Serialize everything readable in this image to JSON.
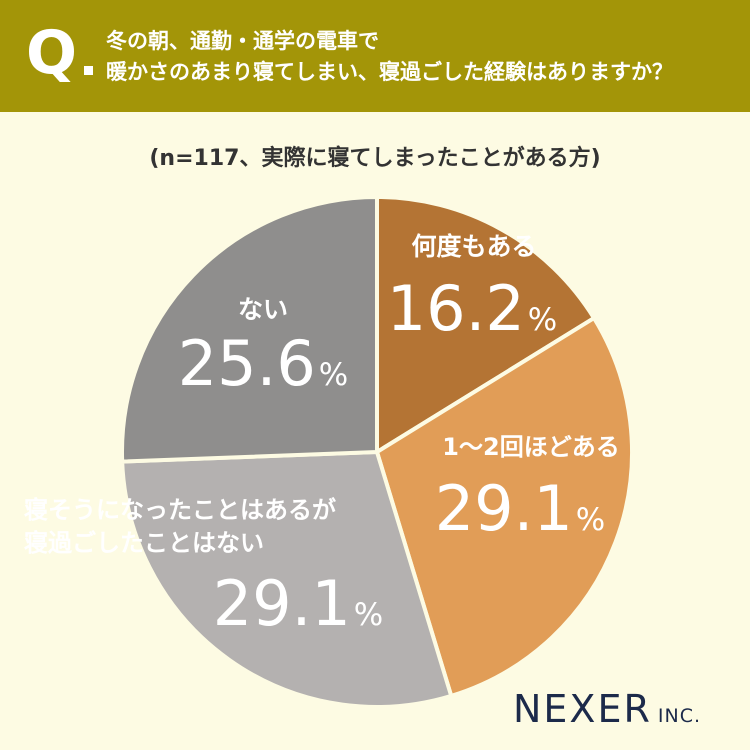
{
  "header": {
    "q_mark": "Q",
    "question_line1": "冬の朝、通勤・通学の電車で",
    "question_line2": "暖かさのあまり寝てしまい、寝過ごした経験はありますか？"
  },
  "subtitle": "(n=117、実際に寝てしまったことがある方)",
  "brand": {
    "name": "NEXER",
    "suffix": "INC."
  },
  "chart_data": {
    "type": "pie",
    "start_angle": "12 o'clock",
    "direction": "clockwise",
    "unit": "%",
    "slices": [
      {
        "label": "何度もある",
        "value": 16.2,
        "color": "#b47434",
        "label_color": "#ffffff"
      },
      {
        "label": "1〜2回ほどある",
        "value": 29.1,
        "color": "#e19d57",
        "label_color": "#ffffff"
      },
      {
        "label": "寝そうになったことはあるが\n寝過ごしたことはない",
        "value": 29.1,
        "color": "#b4b1b0",
        "label_color": "#ffffff"
      },
      {
        "label": "ない",
        "value": 25.6,
        "color": "#8f8e8d",
        "label_color": "#ffffff"
      }
    ]
  }
}
